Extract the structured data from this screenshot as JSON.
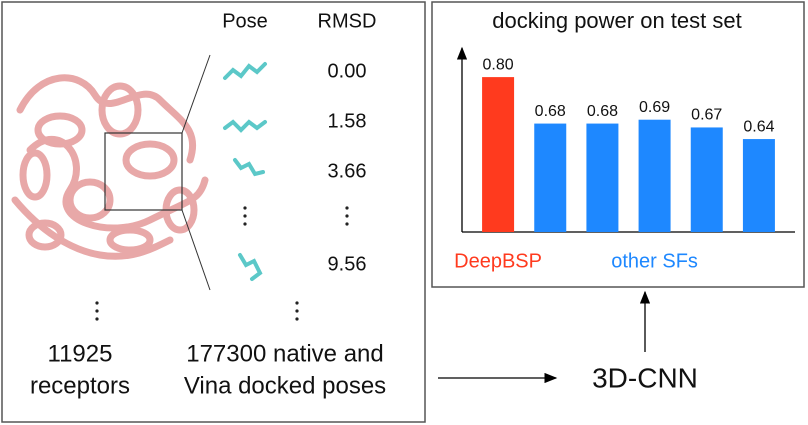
{
  "left": {
    "headers": [
      "Pose",
      "RMSD"
    ],
    "rmsd": [
      "0.00",
      "1.58",
      "3.66",
      "9.56"
    ],
    "receptors": [
      "11925",
      "receptors"
    ],
    "poses": [
      "177300 native and",
      "Vina docked poses"
    ]
  },
  "model": "3D-CNN",
  "chart_data": {
    "type": "bar",
    "title": "docking power on test set",
    "series": [
      {
        "name": "DeepBSP",
        "color": "#ff3a1e",
        "values": [
          0.8
        ],
        "value_labels": [
          "0.80"
        ]
      },
      {
        "name": "other SFs",
        "color": "#1e88ff",
        "values": [
          0.68,
          0.68,
          0.69,
          0.67,
          0.64
        ],
        "value_labels": [
          "0.68",
          "0.68",
          "0.69",
          "0.67",
          "0.64"
        ]
      }
    ],
    "ylim": [
      0.4,
      0.87
    ]
  }
}
